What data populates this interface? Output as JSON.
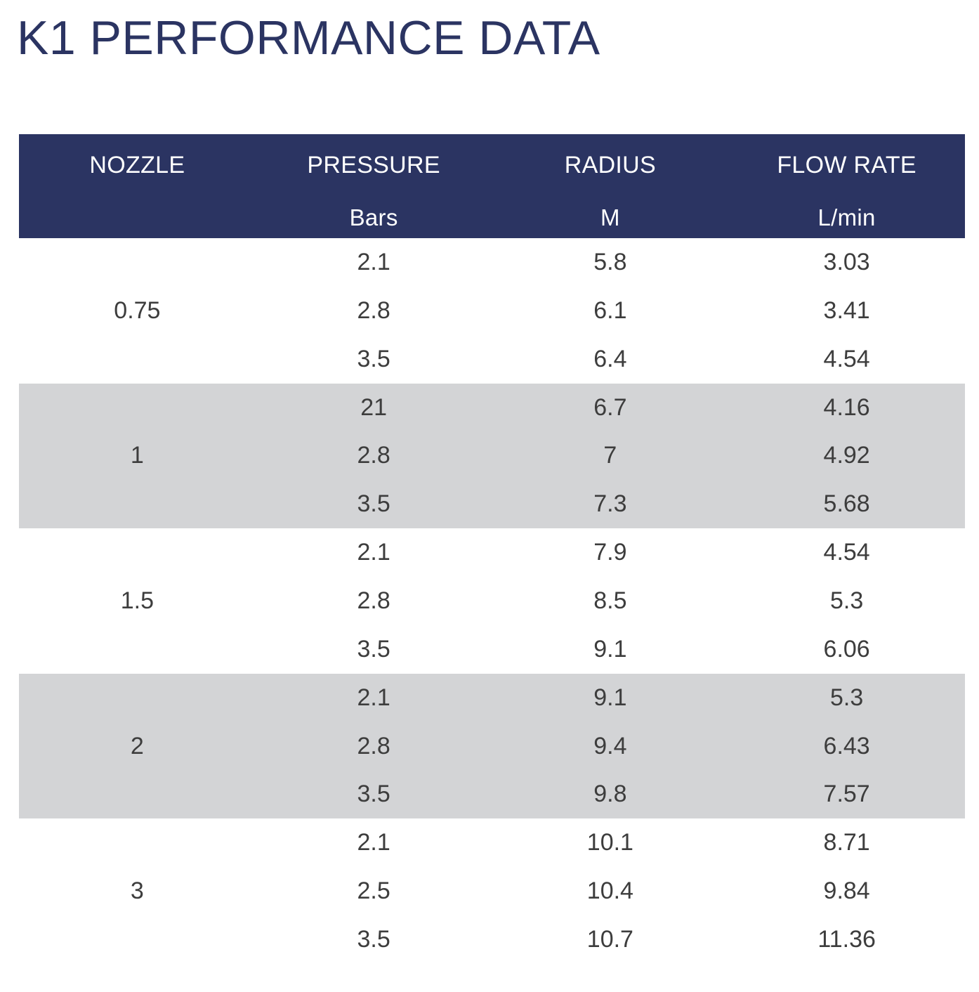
{
  "title": "K1 PERFORMANCE DATA",
  "columns": [
    {
      "name": "NOZZLE",
      "unit": ""
    },
    {
      "name": "PRESSURE",
      "unit": "Bars"
    },
    {
      "name": "RADIUS",
      "unit": "M"
    },
    {
      "name": "FLOW RATE",
      "unit": "L/min"
    }
  ],
  "groups": [
    {
      "nozzle": "0.75",
      "rows": [
        {
          "pressure": "2.1",
          "radius": "5.8",
          "flow": "3.03"
        },
        {
          "pressure": "2.8",
          "radius": "6.1",
          "flow": "3.41"
        },
        {
          "pressure": "3.5",
          "radius": "6.4",
          "flow": "4.54"
        }
      ]
    },
    {
      "nozzle": "1",
      "rows": [
        {
          "pressure": "21",
          "radius": "6.7",
          "flow": "4.16"
        },
        {
          "pressure": "2.8",
          "radius": "7",
          "flow": "4.92"
        },
        {
          "pressure": "3.5",
          "radius": "7.3",
          "flow": "5.68"
        }
      ]
    },
    {
      "nozzle": "1.5",
      "rows": [
        {
          "pressure": "2.1",
          "radius": "7.9",
          "flow": "4.54"
        },
        {
          "pressure": "2.8",
          "radius": "8.5",
          "flow": "5.3"
        },
        {
          "pressure": "3.5",
          "radius": "9.1",
          "flow": "6.06"
        }
      ]
    },
    {
      "nozzle": "2",
      "rows": [
        {
          "pressure": "2.1",
          "radius": "9.1",
          "flow": "5.3"
        },
        {
          "pressure": "2.8",
          "radius": "9.4",
          "flow": "6.43"
        },
        {
          "pressure": "3.5",
          "radius": "9.8",
          "flow": "7.57"
        }
      ]
    },
    {
      "nozzle": "3",
      "rows": [
        {
          "pressure": "2.1",
          "radius": "10.1",
          "flow": "8.71"
        },
        {
          "pressure": "2.5",
          "radius": "10.4",
          "flow": "9.84"
        },
        {
          "pressure": "3.5",
          "radius": "10.7",
          "flow": "11.36"
        }
      ]
    }
  ],
  "colors": {
    "header_bg": "#2b3462",
    "shaded_row_bg": "#d3d4d6",
    "title_color": "#2b3462"
  }
}
